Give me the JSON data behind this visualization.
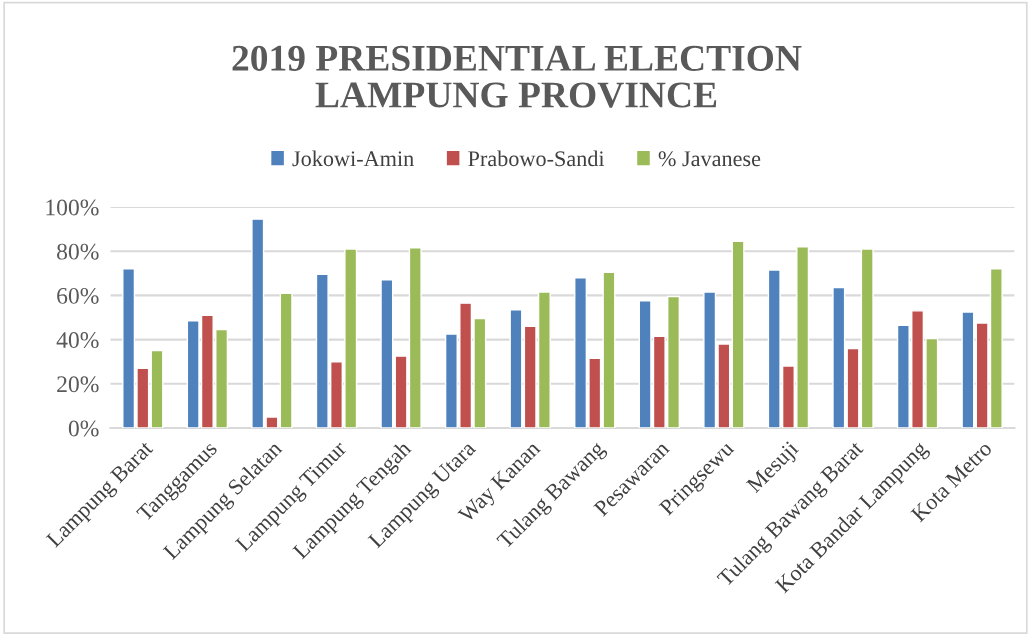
{
  "chart_data": {
    "type": "bar",
    "title": "2019 PRESIDENTIAL ELECTION\nLAMPUNG PROVINCE",
    "categories": [
      "Lampung Barat",
      "Tanggamus",
      "Lampung Selatan",
      "Lampung Timur",
      "Lampung Tengah",
      "Lampung Utara",
      "Way Kanan",
      "Tulang Bawang",
      "Pesawaran",
      "Pringsewu",
      "Mesuji",
      "Tulang Bawang Barat",
      "Kota Bandar Lampung",
      "Kota Metro"
    ],
    "series": [
      {
        "name": "Jokowi-Amin",
        "color": "#4f81bd",
        "values": [
          72,
          48.5,
          94.5,
          69.5,
          67,
          42.5,
          53.5,
          68,
          57.5,
          61.5,
          71.5,
          63.5,
          46.5,
          52.5
        ]
      },
      {
        "name": "Prabowo-Sandi",
        "color": "#c0504d",
        "values": [
          27,
          51,
          5,
          30,
          32.5,
          56.5,
          46,
          31.5,
          41.5,
          38,
          28,
          36,
          53,
          47.5
        ]
      },
      {
        "name": "% Javanese",
        "color": "#9bbb59",
        "values": [
          35,
          44.5,
          61,
          81,
          81.5,
          49.5,
          61.5,
          70.5,
          59.5,
          84.5,
          82,
          81,
          40.5,
          72
        ]
      }
    ],
    "ylim": [
      0,
      100
    ],
    "yticks": [
      {
        "value": 0,
        "label": "0%"
      },
      {
        "value": 20,
        "label": "20%"
      },
      {
        "value": 40,
        "label": "40%"
      },
      {
        "value": 60,
        "label": "60%"
      },
      {
        "value": 80,
        "label": "80%"
      },
      {
        "value": 100,
        "label": "100%"
      }
    ],
    "grid": "y",
    "legend": "top"
  }
}
